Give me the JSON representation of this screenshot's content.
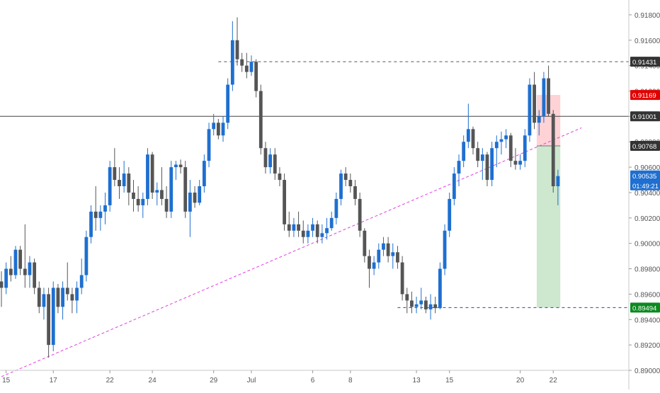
{
  "chart_data": {
    "type": "candlestick",
    "title": "",
    "xlabel": "",
    "ylabel": "",
    "ylim": [
      0.89,
      0.919
    ],
    "y_ticks": [
      "0.91800",
      "0.91600",
      "0.91400",
      "0.91200",
      "0.91000",
      "0.90800",
      "0.90600",
      "0.90400",
      "0.90200",
      "0.90000",
      "0.89800",
      "0.89600",
      "0.89400",
      "0.89200",
      "0.89000"
    ],
    "x_ticks": [
      {
        "label": "15",
        "bar": 1
      },
      {
        "label": "17",
        "bar": 11
      },
      {
        "label": "22",
        "bar": 23
      },
      {
        "label": "24",
        "bar": 32
      },
      {
        "label": "29",
        "bar": 45
      },
      {
        "label": "Jul",
        "bar": 53
      },
      {
        "label": "6",
        "bar": 66
      },
      {
        "label": "8",
        "bar": 74
      },
      {
        "label": "13",
        "bar": 88
      },
      {
        "label": "15",
        "bar": 95
      },
      {
        "label": "20",
        "bar": 110
      },
      {
        "label": "22",
        "bar": 117
      }
    ],
    "colors": {
      "up": "#1e6fd0",
      "down": "#555555",
      "support_line": "#3b3f9e",
      "trendline": "#e040e0",
      "stop_zone": "#ffcdd2",
      "target_zone": "#c8e6c9"
    },
    "candles": [
      [
        0.897,
        0.8978,
        0.895,
        0.8965
      ],
      [
        0.8965,
        0.8985,
        0.896,
        0.898
      ],
      [
        0.898,
        0.899,
        0.897,
        0.8975
      ],
      [
        0.8975,
        0.8998,
        0.8972,
        0.8995
      ],
      [
        0.8995,
        0.8998,
        0.8975,
        0.898
      ],
      [
        0.898,
        0.9015,
        0.8965,
        0.8975
      ],
      [
        0.8975,
        0.899,
        0.8965,
        0.8985
      ],
      [
        0.8985,
        0.8988,
        0.896,
        0.8965
      ],
      [
        0.8965,
        0.897,
        0.8945,
        0.895
      ],
      [
        0.895,
        0.8965,
        0.894,
        0.896
      ],
      [
        0.896,
        0.8965,
        0.891,
        0.892
      ],
      [
        0.892,
        0.897,
        0.8915,
        0.8965
      ],
      [
        0.8965,
        0.8968,
        0.8945,
        0.895
      ],
      [
        0.895,
        0.897,
        0.894,
        0.8965
      ],
      [
        0.8965,
        0.8985,
        0.8955,
        0.896
      ],
      [
        0.896,
        0.8965,
        0.8945,
        0.8955
      ],
      [
        0.8955,
        0.897,
        0.8945,
        0.8965
      ],
      [
        0.8965,
        0.8988,
        0.896,
        0.8975
      ],
      [
        0.8975,
        0.901,
        0.897,
        0.9005
      ],
      [
        0.9005,
        0.903,
        0.9,
        0.9025
      ],
      [
        0.9025,
        0.9045,
        0.901,
        0.902
      ],
      [
        0.902,
        0.903,
        0.901,
        0.9025
      ],
      [
        0.9025,
        0.904,
        0.9015,
        0.903
      ],
      [
        0.903,
        0.9065,
        0.9025,
        0.906
      ],
      [
        0.906,
        0.9075,
        0.9045,
        0.905
      ],
      [
        0.905,
        0.906,
        0.9035,
        0.9045
      ],
      [
        0.9045,
        0.9065,
        0.904,
        0.9055
      ],
      [
        0.9055,
        0.906,
        0.903,
        0.904
      ],
      [
        0.904,
        0.905,
        0.9025,
        0.9035
      ],
      [
        0.9035,
        0.9045,
        0.9025,
        0.903
      ],
      [
        0.903,
        0.904,
        0.902,
        0.9035
      ],
      [
        0.9035,
        0.9075,
        0.903,
        0.907
      ],
      [
        0.907,
        0.9072,
        0.9035,
        0.904
      ],
      [
        0.904,
        0.9048,
        0.903,
        0.9042
      ],
      [
        0.9042,
        0.906,
        0.903,
        0.9035
      ],
      [
        0.9035,
        0.9045,
        0.902,
        0.9025
      ],
      [
        0.9025,
        0.9065,
        0.902,
        0.906
      ],
      [
        0.906,
        0.9065,
        0.905,
        0.9062
      ],
      [
        0.9062,
        0.9066,
        0.9055,
        0.906
      ],
      [
        0.906,
        0.9065,
        0.902,
        0.9025
      ],
      [
        0.9025,
        0.905,
        0.9005,
        0.904
      ],
      [
        0.904,
        0.9045,
        0.9028,
        0.9032
      ],
      [
        0.9032,
        0.905,
        0.903,
        0.9045
      ],
      [
        0.9045,
        0.907,
        0.904,
        0.9065
      ],
      [
        0.9065,
        0.9095,
        0.906,
        0.909
      ],
      [
        0.909,
        0.9102,
        0.9085,
        0.9095
      ],
      [
        0.9095,
        0.9098,
        0.9082,
        0.9085
      ],
      [
        0.9085,
        0.91,
        0.908,
        0.9095
      ],
      [
        0.9095,
        0.913,
        0.909,
        0.9125
      ],
      [
        0.9125,
        0.9175,
        0.912,
        0.916
      ],
      [
        0.916,
        0.9178,
        0.914,
        0.9145
      ],
      [
        0.9145,
        0.915,
        0.9135,
        0.914
      ],
      [
        0.914,
        0.915,
        0.913,
        0.9135
      ],
      [
        0.9135,
        0.9148,
        0.9132,
        0.9143
      ],
      [
        0.9143,
        0.9145,
        0.9115,
        0.912
      ],
      [
        0.912,
        0.9125,
        0.907,
        0.9075
      ],
      [
        0.9075,
        0.908,
        0.9055,
        0.906
      ],
      [
        0.906,
        0.9075,
        0.9055,
        0.907
      ],
      [
        0.907,
        0.9075,
        0.905,
        0.9055
      ],
      [
        0.9055,
        0.906,
        0.9045,
        0.905
      ],
      [
        0.905,
        0.9055,
        0.901,
        0.9015
      ],
      [
        0.9015,
        0.9025,
        0.9005,
        0.901
      ],
      [
        0.901,
        0.902,
        0.9005,
        0.9015
      ],
      [
        0.9015,
        0.9025,
        0.9005,
        0.901
      ],
      [
        0.901,
        0.9018,
        0.9,
        0.9005
      ],
      [
        0.9005,
        0.9015,
        0.9,
        0.901
      ],
      [
        0.901,
        0.902,
        0.9005,
        0.9015
      ],
      [
        0.9015,
        0.9018,
        0.9,
        0.9005
      ],
      [
        0.9005,
        0.9015,
        0.9,
        0.9008
      ],
      [
        0.9008,
        0.902,
        0.9003,
        0.9012
      ],
      [
        0.9012,
        0.9025,
        0.901,
        0.902
      ],
      [
        0.902,
        0.904,
        0.9015,
        0.9035
      ],
      [
        0.9035,
        0.9058,
        0.903,
        0.9055
      ],
      [
        0.9055,
        0.906,
        0.9045,
        0.905
      ],
      [
        0.905,
        0.9055,
        0.904,
        0.9045
      ],
      [
        0.9045,
        0.905,
        0.903,
        0.9035
      ],
      [
        0.9035,
        0.904,
        0.9005,
        0.901
      ],
      [
        0.901,
        0.9012,
        0.8985,
        0.899
      ],
      [
        0.899,
        0.8995,
        0.8965,
        0.898
      ],
      [
        0.898,
        0.899,
        0.8975,
        0.8985
      ],
      [
        0.8985,
        0.9,
        0.898,
        0.8995
      ],
      [
        0.8995,
        0.9005,
        0.899,
        0.9
      ],
      [
        0.9,
        0.9005,
        0.8985,
        0.899
      ],
      [
        0.899,
        0.9,
        0.898,
        0.8993
      ],
      [
        0.8993,
        0.8998,
        0.898,
        0.8985
      ],
      [
        0.8985,
        0.899,
        0.8955,
        0.896
      ],
      [
        0.896,
        0.8965,
        0.8945,
        0.8955
      ],
      [
        0.8955,
        0.8962,
        0.8945,
        0.895
      ],
      [
        0.895,
        0.8958,
        0.8945,
        0.8952
      ],
      [
        0.8952,
        0.8965,
        0.8948,
        0.8955
      ],
      [
        0.8955,
        0.8958,
        0.8945,
        0.8948
      ],
      [
        0.8948,
        0.896,
        0.894,
        0.8952
      ],
      [
        0.8952,
        0.8958,
        0.8945,
        0.8949
      ],
      [
        0.8949,
        0.8985,
        0.8948,
        0.898
      ],
      [
        0.898,
        0.9015,
        0.8975,
        0.901
      ],
      [
        0.901,
        0.904,
        0.9005,
        0.9035
      ],
      [
        0.9035,
        0.906,
        0.903,
        0.9055
      ],
      [
        0.9055,
        0.907,
        0.9045,
        0.9065
      ],
      [
        0.9065,
        0.9085,
        0.906,
        0.908
      ],
      [
        0.908,
        0.911,
        0.9075,
        0.909
      ],
      [
        0.909,
        0.9092,
        0.907,
        0.9075
      ],
      [
        0.9075,
        0.908,
        0.906,
        0.9065
      ],
      [
        0.9065,
        0.9075,
        0.905,
        0.907
      ],
      [
        0.907,
        0.9072,
        0.9045,
        0.905
      ],
      [
        0.905,
        0.908,
        0.9045,
        0.9075
      ],
      [
        0.9075,
        0.9085,
        0.906,
        0.908
      ],
      [
        0.908,
        0.9088,
        0.907,
        0.9082
      ],
      [
        0.9082,
        0.909,
        0.9075,
        0.9085
      ],
      [
        0.9085,
        0.9087,
        0.906,
        0.9065
      ],
      [
        0.9065,
        0.9075,
        0.9058,
        0.9062
      ],
      [
        0.9062,
        0.907,
        0.9058,
        0.9065
      ],
      [
        0.9065,
        0.909,
        0.906,
        0.9085
      ],
      [
        0.9085,
        0.913,
        0.908,
        0.9125
      ],
      [
        0.9125,
        0.9135,
        0.909,
        0.9095
      ],
      [
        0.9095,
        0.9105,
        0.9085,
        0.91
      ],
      [
        0.91,
        0.9135,
        0.9095,
        0.913
      ],
      [
        0.913,
        0.914,
        0.91,
        0.9102
      ],
      [
        0.9102,
        0.9105,
        0.904,
        0.9045
      ],
      [
        0.9045,
        0.9058,
        0.903,
        0.9053
      ]
    ],
    "support_level": {
      "price": 0.89494,
      "label": "0.89494",
      "from_bar": 84,
      "color": "#0a8a20"
    },
    "resistance_level": {
      "price": 0.91431,
      "label": "0.91431",
      "from_bar": 46,
      "color": "#333333"
    },
    "horizontal_level": {
      "price": 0.91001,
      "label": "0.91001",
      "color": "#333333"
    },
    "trendline": {
      "from": {
        "bar": 0,
        "price": 0.8895
      },
      "to": {
        "bar": 123,
        "price": 0.9091
      }
    },
    "position": {
      "entry": {
        "price": 0.90768,
        "label": "0.90768",
        "color": "#333333"
      },
      "stop": {
        "price": 0.91169,
        "label": "0.91169",
        "color": "#e00000"
      },
      "target": {
        "price": 0.89494
      },
      "from_bar": 113.5,
      "to_bar": 118.5
    },
    "last_price": {
      "price": 0.90535,
      "label": "0.90535",
      "countdown": "01:49:21",
      "color": "#1e6fd0"
    }
  }
}
